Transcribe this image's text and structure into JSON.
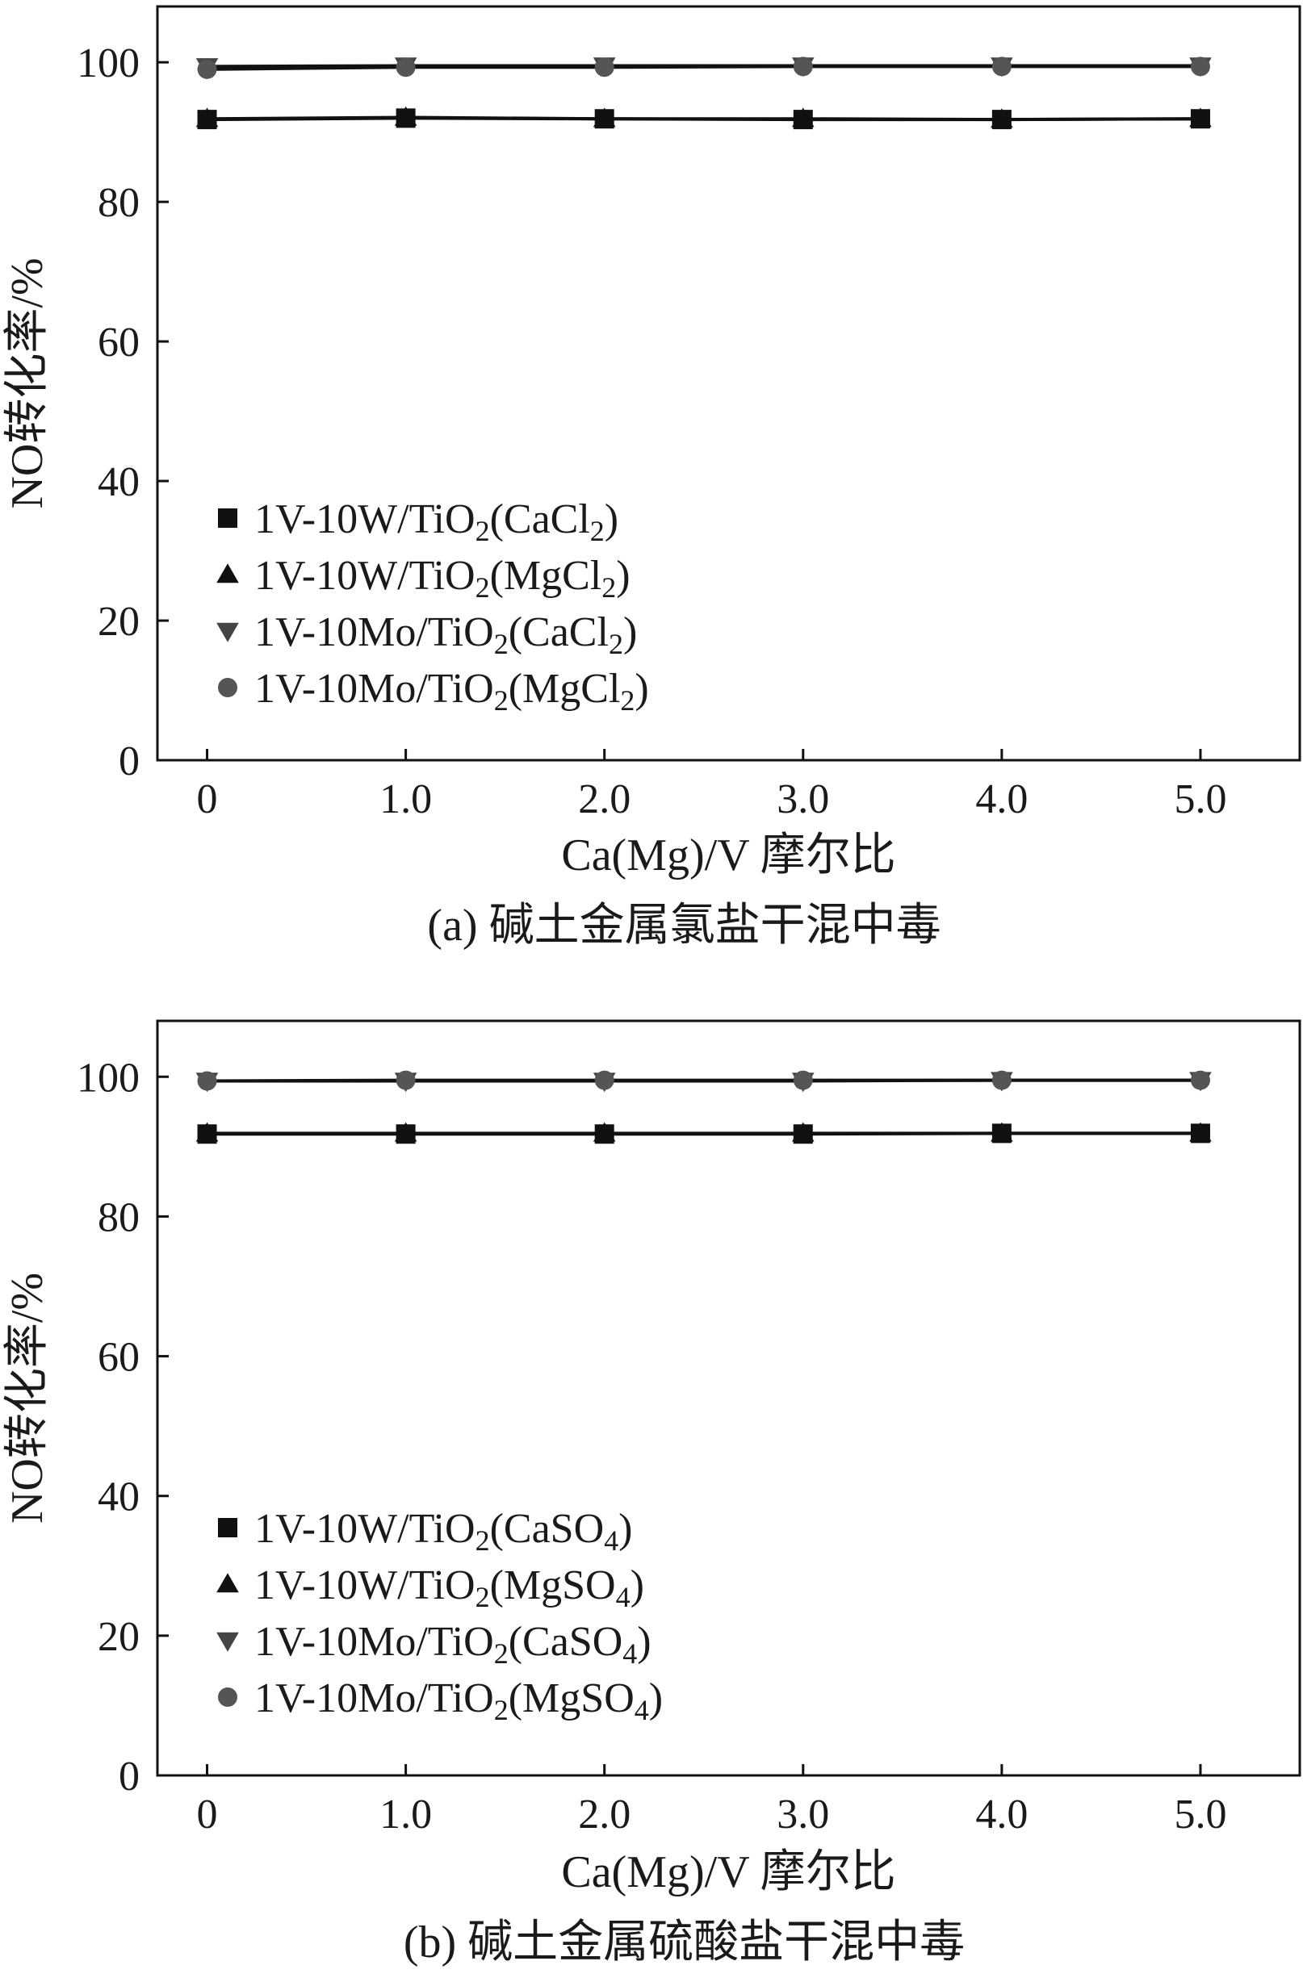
{
  "chart_data": [
    {
      "type": "line",
      "panel": "a",
      "x": [
        0,
        1.0,
        2.0,
        3.0,
        4.0,
        5.0
      ],
      "xticks": [
        "0",
        "1.0",
        "2.0",
        "3.0",
        "4.0",
        "5.0"
      ],
      "yticks": [
        "0",
        "20",
        "40",
        "60",
        "80",
        "100"
      ],
      "xlim": [
        -0.25,
        5.5
      ],
      "ylim": [
        0,
        108
      ],
      "xlabel": "Ca(Mg)/V 摩尔比",
      "ylabel": "NO转化率/%",
      "caption": "(a) 碱土金属氯盐干混中毒",
      "legend_position": "lower-left",
      "series": [
        {
          "name": "1V-10W/TiO2(CaCl2)",
          "label": {
            "base": "1V-10W/TiO",
            "sub1": "2",
            "mid": "(CaCl",
            "sub2": "2",
            "end": ")"
          },
          "marker": "square",
          "color": "#111111",
          "values": [
            91.8,
            92.0,
            91.9,
            91.8,
            91.8,
            91.9
          ]
        },
        {
          "name": "1V-10W/TiO2(MgCl2)",
          "label": {
            "base": "1V-10W/TiO",
            "sub1": "2",
            "mid": "(MgCl",
            "sub2": "2",
            "end": ")"
          },
          "marker": "triangle-up",
          "color": "#111111",
          "values": [
            91.9,
            92.1,
            91.9,
            91.9,
            91.8,
            91.9
          ]
        },
        {
          "name": "1V-10Mo/TiO2(CaCl2)",
          "label": {
            "base": "1V-10Mo/TiO",
            "sub1": "2",
            "mid": "(CaCl",
            "sub2": "2",
            "end": ")"
          },
          "marker": "triangle-down",
          "color": "#444444",
          "values": [
            99.4,
            99.5,
            99.5,
            99.5,
            99.5,
            99.5
          ]
        },
        {
          "name": "1V-10Mo/TiO2(MgCl2)",
          "label": {
            "base": "1V-10Mo/TiO",
            "sub1": "2",
            "mid": "(MgCl",
            "sub2": "2",
            "end": ")"
          },
          "marker": "circle",
          "color": "#555555",
          "values": [
            99.0,
            99.3,
            99.3,
            99.4,
            99.4,
            99.4
          ]
        }
      ]
    },
    {
      "type": "line",
      "panel": "b",
      "x": [
        0,
        1.0,
        2.0,
        3.0,
        4.0,
        5.0
      ],
      "xticks": [
        "0",
        "1.0",
        "2.0",
        "3.0",
        "4.0",
        "5.0"
      ],
      "yticks": [
        "0",
        "20",
        "40",
        "60",
        "80",
        "100"
      ],
      "xlim": [
        -0.25,
        5.5
      ],
      "ylim": [
        0,
        108
      ],
      "xlabel": "Ca(Mg)/V 摩尔比",
      "ylabel": "NO转化率/%",
      "caption": "(b) 碱土金属硫酸盐干混中毒",
      "legend_position": "lower-left",
      "series": [
        {
          "name": "1V-10W/TiO2(CaSO4)",
          "label": {
            "base": "1V-10W/TiO",
            "sub1": "2",
            "mid": "(CaSO",
            "sub2": "4",
            "end": ")"
          },
          "marker": "square",
          "color": "#111111",
          "values": [
            91.8,
            91.8,
            91.8,
            91.8,
            91.9,
            91.9
          ]
        },
        {
          "name": "1V-10W/TiO2(MgSO4)",
          "label": {
            "base": "1V-10W/TiO",
            "sub1": "2",
            "mid": "(MgSO",
            "sub2": "4",
            "end": ")"
          },
          "marker": "triangle-up",
          "color": "#111111",
          "values": [
            91.9,
            91.9,
            91.9,
            91.9,
            91.9,
            91.9
          ]
        },
        {
          "name": "1V-10Mo/TiO2(CaSO4)",
          "label": {
            "base": "1V-10Mo/TiO",
            "sub1": "2",
            "mid": "(CaSO",
            "sub2": "4",
            "end": ")"
          },
          "marker": "triangle-down",
          "color": "#444444",
          "values": [
            99.4,
            99.4,
            99.4,
            99.4,
            99.5,
            99.5
          ]
        },
        {
          "name": "1V-10Mo/TiO2(MgSO4)",
          "label": {
            "base": "1V-10Mo/TiO",
            "sub1": "2",
            "mid": "(MgSO",
            "sub2": "4",
            "end": ")"
          },
          "marker": "circle",
          "color": "#555555",
          "values": [
            99.4,
            99.5,
            99.5,
            99.5,
            99.5,
            99.5
          ]
        }
      ]
    }
  ]
}
